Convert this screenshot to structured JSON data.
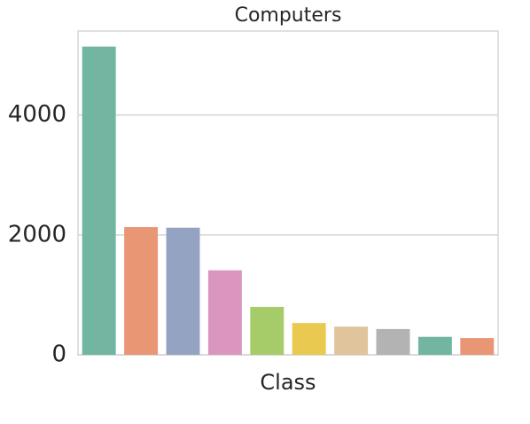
{
  "chart_data": {
    "type": "bar",
    "title": "Computers",
    "x_label": "Class",
    "categories": [
      null,
      null,
      null,
      null,
      null,
      null,
      null,
      null,
      null,
      null
    ],
    "values": [
      5140,
      2130,
      2120,
      1410,
      800,
      530,
      470,
      430,
      300,
      280
    ],
    "colors": [
      "#72b6a1",
      "#e99675",
      "#95a3c3",
      "#db96c0",
      "#a6cb69",
      "#e9c94f",
      "#dfc49c",
      "#b3b3b3",
      "#72b6a1",
      "#e99675"
    ],
    "ylim": [
      0,
      5400
    ],
    "yticks": [
      0,
      2000,
      4000
    ],
    "grid": true
  }
}
